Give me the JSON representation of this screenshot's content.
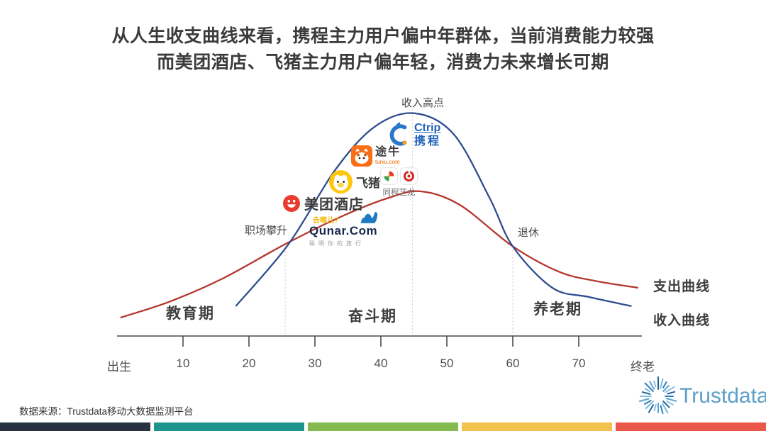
{
  "title": {
    "line1": "从人生收支曲线来看，携程主力用户偏中年群体，当前消费能力较强",
    "line2": "而美团酒店、飞猪主力用户偏年轻，消费力未来增长可期"
  },
  "chart_data": {
    "type": "line",
    "x_axis": {
      "left_label": "出生",
      "right_label": "终老",
      "ticks": [
        10,
        20,
        30,
        40,
        50,
        60,
        70
      ],
      "age_min": 0,
      "age_max": 80
    },
    "series": [
      {
        "name": "支出曲线",
        "color": "#b5352c",
        "points": [
          [
            0.5,
            8
          ],
          [
            8,
            15
          ],
          [
            16,
            25
          ],
          [
            25.5,
            40
          ],
          [
            34,
            52
          ],
          [
            41,
            60
          ],
          [
            46,
            63
          ],
          [
            52,
            57
          ],
          [
            60,
            39
          ],
          [
            67,
            28
          ],
          [
            72.5,
            24
          ],
          [
            79,
            21
          ]
        ]
      },
      {
        "name": "收入曲线",
        "color": "#2e4d8e",
        "points": [
          [
            18,
            13
          ],
          [
            26,
            40
          ],
          [
            33,
            72
          ],
          [
            39,
            91
          ],
          [
            45,
            97
          ],
          [
            51,
            88
          ],
          [
            56.5,
            60
          ],
          [
            60,
            39
          ],
          [
            66,
            21
          ],
          [
            71.5,
            17
          ],
          [
            78,
            13
          ]
        ]
      }
    ],
    "markers": [
      {
        "label": "职场攀升",
        "age": 25.5,
        "value": 40
      },
      {
        "label": "收入高点",
        "age": 44.8,
        "value": 99
      },
      {
        "label": "退休",
        "age": 60,
        "value": 39
      }
    ],
    "phases": [
      {
        "label": "教育期"
      },
      {
        "label": "奋斗期"
      },
      {
        "label": "养老期"
      }
    ]
  },
  "logos": {
    "ctrip": {
      "name": "Ctrip",
      "cn": "携程"
    },
    "tuniu": {
      "name": "途牛",
      "sub": "tuniu.com"
    },
    "fliggy": {
      "name": "飞猪"
    },
    "tongcheng": {
      "name": "同程艺龙"
    },
    "meituan": {
      "name": "美团酒店"
    },
    "qunar": {
      "top": "去哪儿?",
      "name": "Qunar.Com",
      "sub": "聪明你的旅行"
    }
  },
  "footer": {
    "source": "数据来源：Trustdata移动大数据监测平台",
    "brand": "Trustdata"
  },
  "bottom_bars": [
    "#27313f",
    "#1d948d",
    "#85ba51",
    "#f2c14e",
    "#ea5648"
  ]
}
